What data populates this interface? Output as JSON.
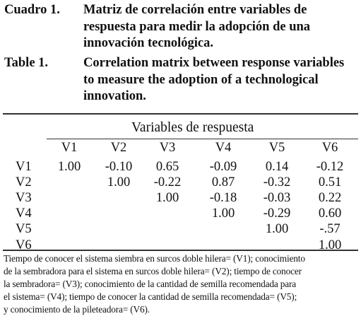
{
  "caption_es": {
    "number": "Cuadro 1.",
    "lines": [
      "Matriz de correlación entre variables de",
      "respuesta para medir la adopción de una",
      "innovación tecnológica."
    ]
  },
  "caption_en": {
    "number": "Table 1.",
    "lines": [
      "Correlation matrix between response variables",
      "to measure the adoption of a technological",
      "innovation."
    ]
  },
  "table": {
    "spanner": "Variables de respuesta",
    "columns": [
      "V1",
      "V2",
      "V3",
      "V4",
      "V5",
      "V6"
    ],
    "rows": [
      {
        "label": "V1",
        "values": [
          "1.00",
          "-0.10",
          "0.65",
          "-0.09",
          "0.14",
          "-0.12"
        ]
      },
      {
        "label": "V2",
        "values": [
          "",
          "1.00",
          "-0.22",
          "0.87",
          "-0.32",
          "0.51"
        ]
      },
      {
        "label": "V3",
        "values": [
          "",
          "",
          "1.00",
          "-0.18",
          "-0.03",
          "0.22"
        ]
      },
      {
        "label": "V4",
        "values": [
          "",
          "",
          "",
          "1.00",
          "-0.29",
          "0.60"
        ]
      },
      {
        "label": "V5",
        "values": [
          "",
          "",
          "",
          "",
          "1.00",
          "-.57"
        ]
      },
      {
        "label": "V6",
        "values": [
          "",
          "",
          "",
          "",
          "",
          "1.00"
        ]
      }
    ]
  },
  "footnote_lines": [
    "Tiempo de conocer el sistema siembra en surcos doble hilera= (V1); conocimiento",
    "de la sembradora para el sistema en surcos doble hilera= (V2); tiempo de conocer",
    "la sembradora= (V3); conocimiento de la cantidad de semilla recomendada para",
    "el sistema= (V4); tiempo de conocer la cantidad de semilla recomendada= (V5);",
    "y conocimiento de la pileteadora= (V6)."
  ]
}
